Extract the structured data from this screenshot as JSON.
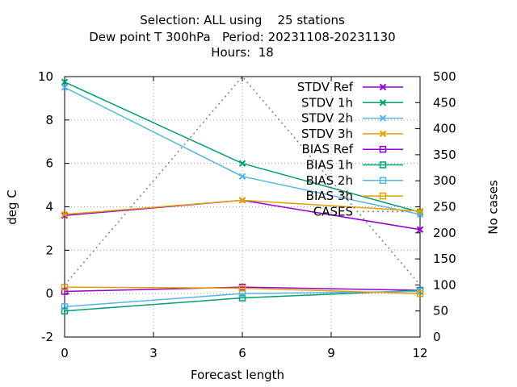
{
  "chart_data": {
    "type": "line",
    "title": {
      "line1": "Selection: ALL using    25 stations",
      "line2": "Dew point T 300hPa   Period: 20231108-20231130",
      "line3": "Hours:  18"
    },
    "xlabel": "Forecast length",
    "ylabel": "deg C",
    "y2label": "No cases",
    "x": [
      0,
      6,
      12
    ],
    "xlim": [
      0,
      12
    ],
    "ylim": [
      -2,
      10
    ],
    "y2lim": [
      0,
      500
    ],
    "xticks": [
      0,
      3,
      6,
      9,
      12
    ],
    "yticks": [
      -2,
      0,
      2,
      4,
      6,
      8,
      10
    ],
    "y2ticks": [
      0,
      50,
      100,
      150,
      200,
      250,
      300,
      350,
      400,
      450,
      500
    ],
    "grid": true,
    "legend_position": "top-right",
    "series": [
      {
        "name": "STDV Ref",
        "values": [
          3.6,
          4.3,
          2.95
        ],
        "color": "#9400d3",
        "marker": "x"
      },
      {
        "name": "STDV 1h",
        "values": [
          9.75,
          6.0,
          3.75
        ],
        "color": "#009e73",
        "marker": "x"
      },
      {
        "name": "STDV 2h",
        "values": [
          9.5,
          5.4,
          3.65
        ],
        "color": "#56b4e9",
        "marker": "x"
      },
      {
        "name": "STDV 3h",
        "values": [
          3.65,
          4.3,
          3.8
        ],
        "color": "#e69f00",
        "marker": "x"
      },
      {
        "name": "BIAS Ref",
        "values": [
          0.1,
          0.3,
          0.15
        ],
        "color": "#9400d3",
        "marker": "square"
      },
      {
        "name": "BIAS 1h",
        "values": [
          -0.8,
          -0.2,
          0.15
        ],
        "color": "#009e73",
        "marker": "square"
      },
      {
        "name": "BIAS 2h",
        "values": [
          -0.6,
          0.0,
          0.1
        ],
        "color": "#56b4e9",
        "marker": "square"
      },
      {
        "name": "BIAS 3h",
        "values": [
          0.3,
          0.25,
          0.0
        ],
        "color": "#e69f00",
        "marker": "square"
      },
      {
        "name": "CASES",
        "values": [
          100,
          500,
          100
        ],
        "axis": "y2",
        "color": "#808080",
        "style": "dotted"
      }
    ]
  }
}
